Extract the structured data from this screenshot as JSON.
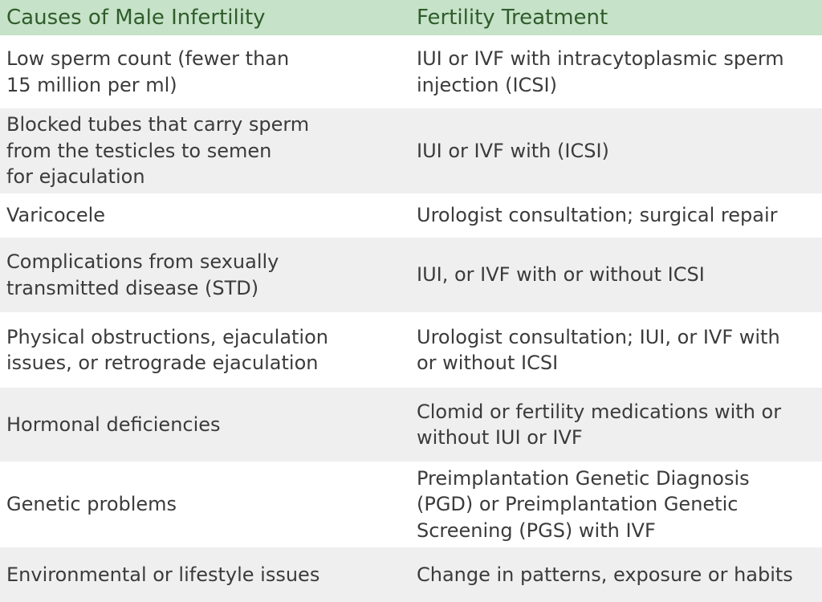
{
  "header": {
    "col1": "Causes of Male Infertility",
    "col2": "Fertility Treatment"
  },
  "rows": [
    {
      "cause": "Low sperm count (fewer than\n15 million per ml)",
      "treatment": "IUI or IVF with intracytoplasmic sperm\ninjection (ICSI)"
    },
    {
      "cause": "Blocked tubes that carry sperm\nfrom the testicles to semen\nfor ejaculation",
      "treatment": "IUI or IVF with (ICSI)"
    },
    {
      "cause": "Varicocele",
      "treatment": "Urologist consultation; surgical repair"
    },
    {
      "cause": "Complications from sexually\ntransmitted disease (STD)",
      "treatment": "IUI, or IVF with or without ICSI"
    },
    {
      "cause": "Physical obstructions, ejaculation\nissues, or retrograde ejaculation",
      "treatment": "Urologist consultation; IUI, or IVF with\nor without ICSI"
    },
    {
      "cause": "Hormonal deficiencies",
      "treatment": "Clomid or fertility medications with or\nwithout IUI or IVF"
    },
    {
      "cause": "Genetic problems",
      "treatment": "Preimplantation Genetic Diagnosis\n(PGD) or Preimplantation Genetic\nScreening (PGS) with IVF"
    },
    {
      "cause": "Environmental or lifestyle issues",
      "treatment": "Change in patterns, exposure or habits"
    }
  ],
  "colors": {
    "header_bg": "#c6e2c8",
    "header_text": "#2f5c2b",
    "alt_row_bg": "#efefef",
    "body_text": "#3b3b3b"
  }
}
